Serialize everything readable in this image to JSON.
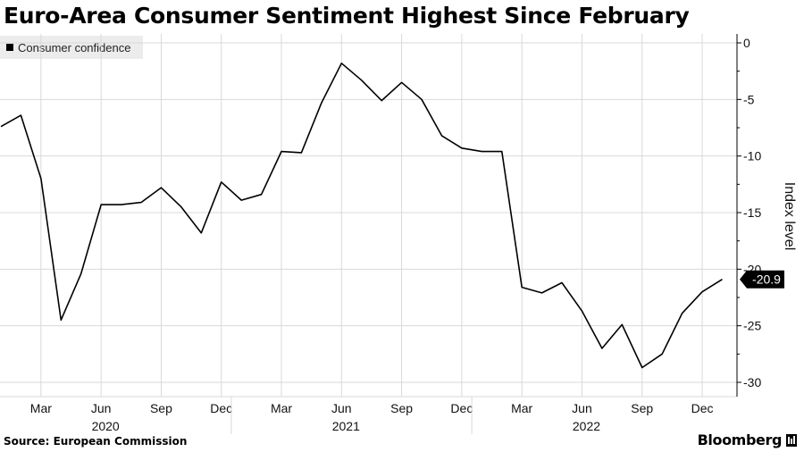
{
  "header": {
    "title": "Euro-Area Consumer Sentiment Highest Since February"
  },
  "legend": {
    "label": "Consumer confidence"
  },
  "footer": {
    "source": "Source: European Commission",
    "brand": "Bloomberg"
  },
  "colors": {
    "line": "#000000",
    "grid": "#d9d9d9",
    "legend_bg": "#ececec",
    "callout_bg": "#000000"
  },
  "chart_data": {
    "type": "line",
    "title": "Euro-Area Consumer Sentiment Highest Since February",
    "ylabel": "Index level",
    "xlabel": "",
    "ylim": [
      -31,
      1
    ],
    "yticks": [
      0,
      -5,
      -10,
      -15,
      -20,
      -25,
      -30
    ],
    "ytick_labels": [
      "0",
      "-5",
      "-10",
      "-15",
      "-20",
      "-25",
      "-30"
    ],
    "x_month_labels": [
      "Mar",
      "Jun",
      "Sep",
      "Dec",
      "Mar",
      "Jun",
      "Sep",
      "Dec",
      "Mar",
      "Jun",
      "Sep",
      "Dec"
    ],
    "x_year_labels": [
      "2020",
      "2021",
      "2022"
    ],
    "series": [
      {
        "name": "Consumer confidence",
        "x": [
          "2020-01",
          "2020-02",
          "2020-03",
          "2020-04",
          "2020-05",
          "2020-06",
          "2020-07",
          "2020-08",
          "2020-09",
          "2020-10",
          "2020-11",
          "2020-12",
          "2021-01",
          "2021-02",
          "2021-03",
          "2021-04",
          "2021-05",
          "2021-06",
          "2021-07",
          "2021-08",
          "2021-09",
          "2021-10",
          "2021-11",
          "2021-12",
          "2022-01",
          "2022-02",
          "2022-03",
          "2022-04",
          "2022-05",
          "2022-06",
          "2022-07",
          "2022-08",
          "2022-09",
          "2022-10",
          "2022-11",
          "2022-12",
          "2023-01"
        ],
        "values": [
          -7.4,
          -6.4,
          -12.0,
          -24.5,
          -20.4,
          -14.3,
          -14.3,
          -14.1,
          -12.8,
          -14.5,
          -16.8,
          -12.3,
          -13.9,
          -13.4,
          -9.6,
          -9.7,
          -5.3,
          -1.8,
          -3.3,
          -5.1,
          -3.5,
          -5.0,
          -8.2,
          -9.3,
          -9.6,
          -9.6,
          -21.6,
          -22.1,
          -21.2,
          -23.7,
          -27.0,
          -24.9,
          -28.7,
          -27.5,
          -23.9,
          -22.0,
          -20.9
        ]
      }
    ],
    "last_value_label": "-20.9"
  }
}
